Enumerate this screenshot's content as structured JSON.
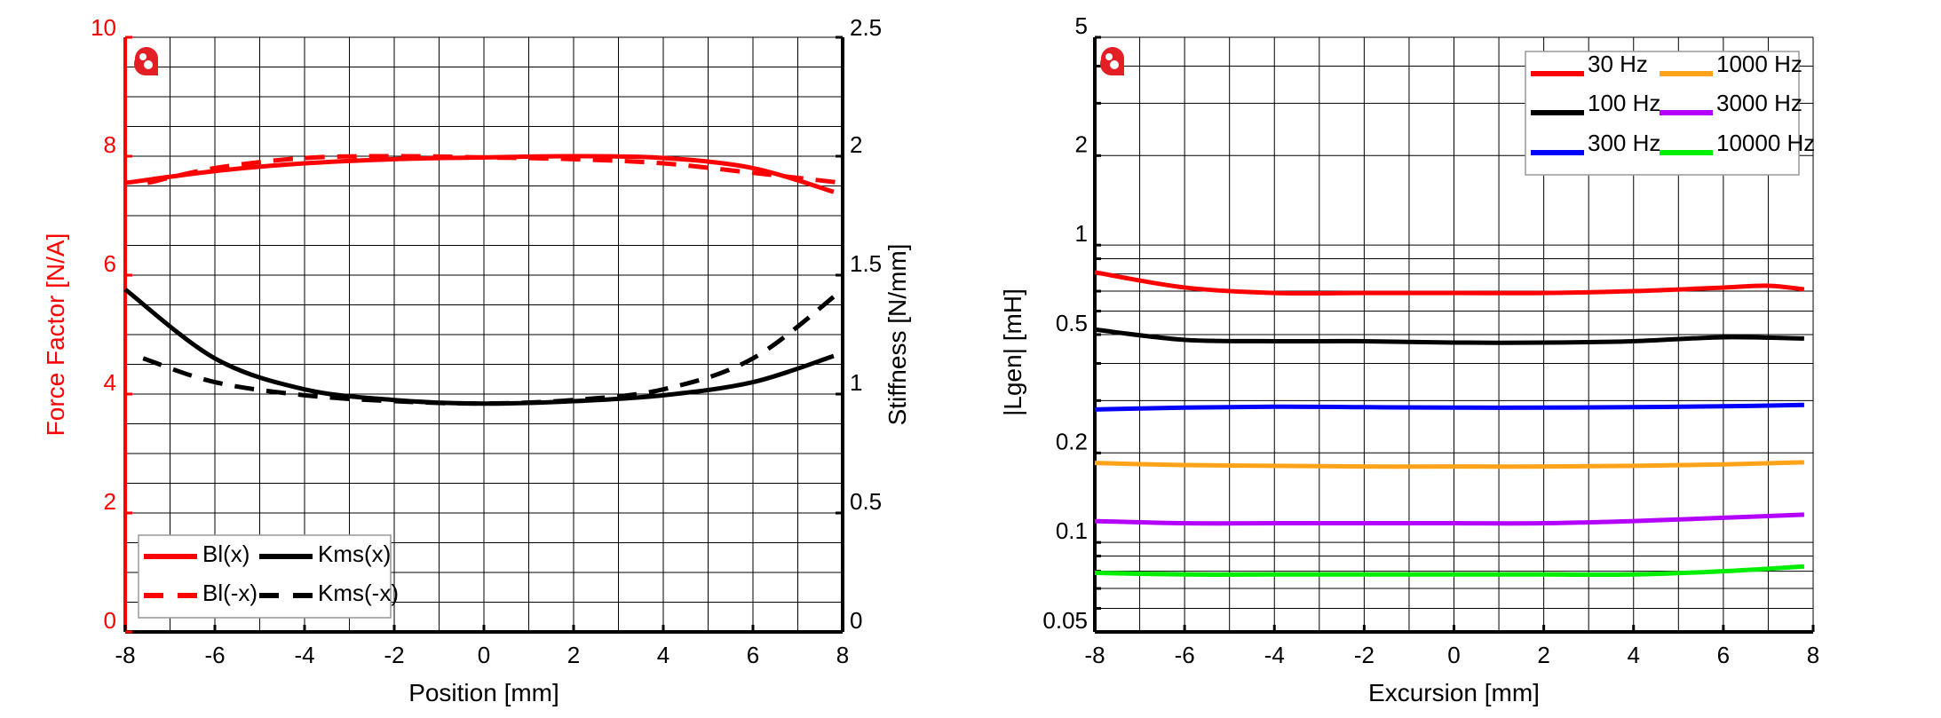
{
  "chart_data": [
    {
      "type": "line",
      "xlabel": "Position [mm]",
      "ylabel": "Force Factor [N/A]",
      "y2label": "Stiffness [N/mm]",
      "xlim": [
        -8,
        8
      ],
      "ylim": [
        0,
        10
      ],
      "y2lim": [
        0,
        2.5
      ],
      "xticks": [
        "-8",
        "-6",
        "-4",
        "-2",
        "0",
        "2",
        "4",
        "6",
        "8"
      ],
      "yticks": [
        "0",
        "2",
        "4",
        "6",
        "8",
        "10"
      ],
      "y2ticks": [
        "0",
        "0.5",
        "1",
        "1.5",
        "2",
        "2.5"
      ],
      "grid": true,
      "legend_position": "bottom-left",
      "axis_color_left": "#ff0000",
      "series": [
        {
          "name": "Bl(x)",
          "axis": "left",
          "color": "#ff0000",
          "dash": false,
          "x": [
            -8,
            -6,
            -4,
            -2,
            0,
            2,
            4,
            6,
            7.8
          ],
          "y": [
            7.55,
            7.75,
            7.88,
            7.95,
            7.98,
            8.0,
            7.97,
            7.8,
            7.4
          ]
        },
        {
          "name": "Bl(-x)",
          "axis": "left",
          "color": "#ff0000",
          "dash": true,
          "x": [
            -7.5,
            -6,
            -4,
            -2,
            0,
            2,
            4,
            6,
            8
          ],
          "y": [
            7.55,
            7.8,
            7.97,
            8.0,
            7.98,
            7.95,
            7.88,
            7.72,
            7.55
          ]
        },
        {
          "name": "Kms(x)",
          "axis": "right",
          "color": "#000000",
          "dash": false,
          "x": [
            -8,
            -6,
            -4,
            -2,
            0,
            2,
            4,
            6,
            7.8
          ],
          "y": [
            1.44,
            1.15,
            1.02,
            0.975,
            0.96,
            0.97,
            0.995,
            1.05,
            1.16
          ]
        },
        {
          "name": "Kms(-x)",
          "axis": "right",
          "color": "#000000",
          "dash": true,
          "x": [
            -7.6,
            -6,
            -4,
            -2,
            0,
            2,
            4,
            6,
            8
          ],
          "y": [
            1.15,
            1.05,
            0.995,
            0.97,
            0.96,
            0.975,
            1.02,
            1.15,
            1.44
          ]
        }
      ]
    },
    {
      "type": "line",
      "xlabel": "Excursion [mm]",
      "ylabel": "|Lgen| [mH]",
      "xlim": [
        -8,
        8
      ],
      "ylim": [
        0.05,
        5
      ],
      "yscale": "log",
      "xticks": [
        "-8",
        "-6",
        "-4",
        "-2",
        "0",
        "2",
        "4",
        "6",
        "8"
      ],
      "yticks": [
        "0.05",
        "0.1",
        "0.2",
        "0.5",
        "1",
        "2",
        "5"
      ],
      "grid": true,
      "legend_position": "top-right",
      "series": [
        {
          "name": "30 Hz",
          "color": "#ff0000",
          "x": [
            -8,
            -6,
            -4,
            -2,
            0,
            2,
            4,
            6,
            7,
            7.8
          ],
          "y": [
            0.81,
            0.72,
            0.69,
            0.69,
            0.69,
            0.69,
            0.7,
            0.72,
            0.73,
            0.71
          ]
        },
        {
          "name": "100 Hz",
          "color": "#000000",
          "x": [
            -8,
            -6,
            -4,
            -2,
            0,
            2,
            4,
            6,
            7.8
          ],
          "y": [
            0.52,
            0.48,
            0.475,
            0.475,
            0.47,
            0.47,
            0.475,
            0.49,
            0.485
          ]
        },
        {
          "name": "300 Hz",
          "color": "#0000ff",
          "x": [
            -8,
            -6,
            -4,
            -2,
            0,
            2,
            4,
            6,
            7.8
          ],
          "y": [
            0.28,
            0.284,
            0.286,
            0.285,
            0.284,
            0.284,
            0.285,
            0.287,
            0.29
          ]
        },
        {
          "name": "1000 Hz",
          "color": "#ffa31a",
          "x": [
            -8,
            -6,
            -4,
            -2,
            0,
            2,
            4,
            6,
            7.8
          ],
          "y": [
            0.185,
            0.182,
            0.181,
            0.18,
            0.18,
            0.18,
            0.181,
            0.183,
            0.186
          ]
        },
        {
          "name": "3000 Hz",
          "color": "#b400ff",
          "x": [
            -8,
            -6,
            -4,
            -2,
            0,
            2,
            4,
            6,
            7.8
          ],
          "y": [
            0.118,
            0.116,
            0.116,
            0.116,
            0.116,
            0.116,
            0.118,
            0.121,
            0.124
          ]
        },
        {
          "name": "10000 Hz",
          "color": "#00ee00",
          "x": [
            -8,
            -6,
            -4,
            -2,
            0,
            2,
            4,
            6,
            7.8
          ],
          "y": [
            0.079,
            0.078,
            0.078,
            0.078,
            0.078,
            0.078,
            0.078,
            0.08,
            0.083
          ]
        }
      ]
    }
  ]
}
